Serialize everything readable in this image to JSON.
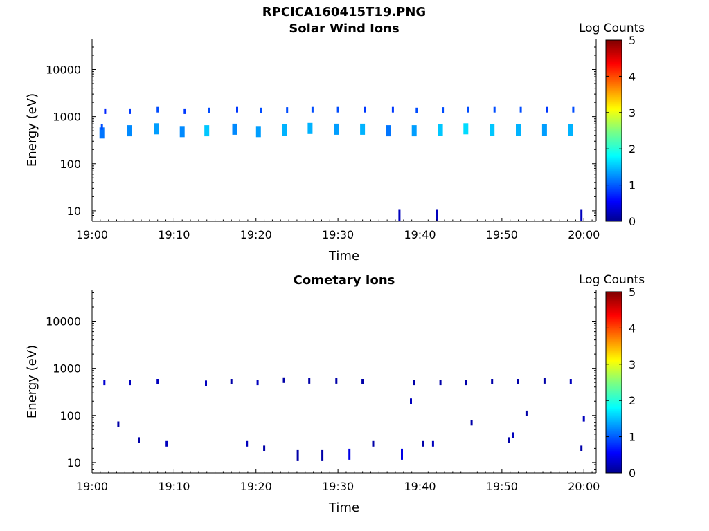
{
  "figure": {
    "filename": "RPCICA160415T19.PNG"
  },
  "chart_data": [
    {
      "type": "heatmap",
      "title": "Solar Wind Ions",
      "xlabel": "Time",
      "ylabel": "Energy (eV)",
      "x_ticks": [
        "19:00",
        "19:10",
        "19:20",
        "19:30",
        "19:40",
        "19:50",
        "20:00"
      ],
      "y_ticks": [
        "10",
        "100",
        "1000",
        "10000"
      ],
      "y_scale": "log",
      "ylim": [
        6,
        45000
      ],
      "xlim_minutes": [
        0,
        61.5
      ],
      "colorbar": {
        "label": "Log Counts",
        "ticks": [
          "0",
          "1",
          "2",
          "3",
          "4",
          "5"
        ],
        "range": [
          0,
          5
        ],
        "colormap": "jet"
      },
      "description": "Periodic solar wind ion bursts near 500-1500 eV roughly every 3 minutes",
      "points": [
        {
          "t": 1.2,
          "e": 450,
          "c": 1.2
        },
        {
          "t": 1.2,
          "e": 600,
          "c": 1.0
        },
        {
          "t": 1.6,
          "e": 1300,
          "c": 0.8
        },
        {
          "t": 4.6,
          "e": 500,
          "c": 1.3
        },
        {
          "t": 4.6,
          "e": 1300,
          "c": 0.9
        },
        {
          "t": 7.9,
          "e": 550,
          "c": 1.4
        },
        {
          "t": 8.0,
          "e": 1400,
          "c": 1.0
        },
        {
          "t": 11.0,
          "e": 480,
          "c": 1.3
        },
        {
          "t": 11.3,
          "e": 1300,
          "c": 0.9
        },
        {
          "t": 14.0,
          "e": 500,
          "c": 1.6
        },
        {
          "t": 14.3,
          "e": 1350,
          "c": 1.0
        },
        {
          "t": 17.4,
          "e": 540,
          "c": 1.3
        },
        {
          "t": 17.7,
          "e": 1400,
          "c": 0.9
        },
        {
          "t": 20.3,
          "e": 480,
          "c": 1.4
        },
        {
          "t": 20.6,
          "e": 1350,
          "c": 1.0
        },
        {
          "t": 23.5,
          "e": 520,
          "c": 1.5
        },
        {
          "t": 23.8,
          "e": 1380,
          "c": 1.0
        },
        {
          "t": 26.6,
          "e": 560,
          "c": 1.5
        },
        {
          "t": 26.9,
          "e": 1400,
          "c": 1.0
        },
        {
          "t": 29.8,
          "e": 540,
          "c": 1.4
        },
        {
          "t": 30.0,
          "e": 1400,
          "c": 1.0
        },
        {
          "t": 33.0,
          "e": 540,
          "c": 1.5
        },
        {
          "t": 33.3,
          "e": 1400,
          "c": 0.9
        },
        {
          "t": 36.2,
          "e": 500,
          "c": 1.2
        },
        {
          "t": 36.7,
          "e": 1400,
          "c": 0.9
        },
        {
          "t": 39.3,
          "e": 500,
          "c": 1.4
        },
        {
          "t": 39.6,
          "e": 1350,
          "c": 1.0
        },
        {
          "t": 42.5,
          "e": 520,
          "c": 1.6
        },
        {
          "t": 42.8,
          "e": 1380,
          "c": 1.0
        },
        {
          "t": 45.6,
          "e": 550,
          "c": 1.7
        },
        {
          "t": 45.9,
          "e": 1400,
          "c": 1.0
        },
        {
          "t": 48.8,
          "e": 520,
          "c": 1.6
        },
        {
          "t": 49.1,
          "e": 1400,
          "c": 1.0
        },
        {
          "t": 52.0,
          "e": 520,
          "c": 1.5
        },
        {
          "t": 52.3,
          "e": 1400,
          "c": 1.0
        },
        {
          "t": 55.2,
          "e": 520,
          "c": 1.4
        },
        {
          "t": 55.5,
          "e": 1400,
          "c": 0.9
        },
        {
          "t": 58.4,
          "e": 520,
          "c": 1.5
        },
        {
          "t": 58.7,
          "e": 1400,
          "c": 1.0
        },
        {
          "t": 37.5,
          "e": 8,
          "c": 0.3
        },
        {
          "t": 42.1,
          "e": 8,
          "c": 0.3
        },
        {
          "t": 59.7,
          "e": 8,
          "c": 0.3
        }
      ]
    },
    {
      "type": "heatmap",
      "title": "Cometary Ions",
      "xlabel": "Time",
      "ylabel": "Energy (eV)",
      "x_ticks": [
        "19:00",
        "19:10",
        "19:20",
        "19:30",
        "19:40",
        "19:50",
        "20:00"
      ],
      "y_ticks": [
        "10",
        "100",
        "1000",
        "10000"
      ],
      "y_scale": "log",
      "ylim": [
        6,
        45000
      ],
      "xlim_minutes": [
        0,
        61.5
      ],
      "colorbar": {
        "label": "Log Counts",
        "ticks": [
          "0",
          "1",
          "2",
          "3",
          "4",
          "5"
        ],
        "range": [
          0,
          5
        ],
        "colormap": "jet"
      },
      "description": "Sparse low-count cometary ion detections near 500 eV and below 100 eV",
      "points": [
        {
          "t": 1.5,
          "e": 500,
          "c": 0.4
        },
        {
          "t": 4.6,
          "e": 500,
          "c": 0.3
        },
        {
          "t": 8.0,
          "e": 520,
          "c": 0.3
        },
        {
          "t": 13.9,
          "e": 480,
          "c": 0.3
        },
        {
          "t": 17.0,
          "e": 520,
          "c": 0.2
        },
        {
          "t": 20.2,
          "e": 500,
          "c": 0.3
        },
        {
          "t": 23.4,
          "e": 560,
          "c": 0.2
        },
        {
          "t": 26.5,
          "e": 540,
          "c": 0.2
        },
        {
          "t": 29.8,
          "e": 540,
          "c": 0.2
        },
        {
          "t": 33.0,
          "e": 520,
          "c": 0.2
        },
        {
          "t": 38.9,
          "e": 200,
          "c": 0.3
        },
        {
          "t": 39.3,
          "e": 500,
          "c": 0.2
        },
        {
          "t": 42.5,
          "e": 500,
          "c": 0.2
        },
        {
          "t": 45.6,
          "e": 500,
          "c": 0.2
        },
        {
          "t": 48.8,
          "e": 520,
          "c": 0.2
        },
        {
          "t": 52.0,
          "e": 520,
          "c": 0.2
        },
        {
          "t": 55.2,
          "e": 540,
          "c": 0.2
        },
        {
          "t": 58.4,
          "e": 520,
          "c": 0.3
        },
        {
          "t": 3.2,
          "e": 65,
          "c": 0.2
        },
        {
          "t": 5.7,
          "e": 30,
          "c": 0.2
        },
        {
          "t": 9.1,
          "e": 25,
          "c": 0.3
        },
        {
          "t": 18.9,
          "e": 25,
          "c": 0.3
        },
        {
          "t": 21.0,
          "e": 20,
          "c": 0.2
        },
        {
          "t": 25.1,
          "e": 14,
          "c": 0.2
        },
        {
          "t": 28.1,
          "e": 14,
          "c": 0.2
        },
        {
          "t": 31.4,
          "e": 15,
          "c": 0.5
        },
        {
          "t": 34.3,
          "e": 25,
          "c": 0.2
        },
        {
          "t": 37.8,
          "e": 15,
          "c": 0.5
        },
        {
          "t": 40.4,
          "e": 25,
          "c": 0.2
        },
        {
          "t": 41.6,
          "e": 25,
          "c": 0.3
        },
        {
          "t": 46.3,
          "e": 70,
          "c": 0.2
        },
        {
          "t": 50.9,
          "e": 30,
          "c": 0.2
        },
        {
          "t": 51.4,
          "e": 38,
          "c": 0.3
        },
        {
          "t": 53.0,
          "e": 110,
          "c": 0.2
        },
        {
          "t": 59.7,
          "e": 20,
          "c": 0.2
        },
        {
          "t": 60.0,
          "e": 85,
          "c": 0.3
        }
      ]
    }
  ]
}
